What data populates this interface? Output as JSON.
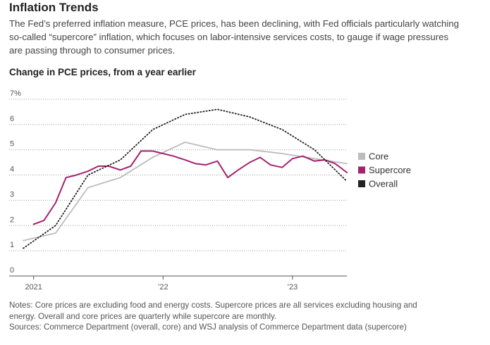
{
  "header": {
    "title": "Inflation Trends",
    "subtitle": "The Fed’s preferred inflation measure, PCE prices, has been declining, with Fed officials particularly watching so-called “supercore” inflation, which focuses on labor-intensive services costs, to gauge if wage pressures are passing through to consumer prices."
  },
  "chart_data": {
    "type": "line",
    "title": "Change in PCE prices, from a year earlier",
    "xlabel": "",
    "ylabel": "",
    "ylim": [
      0,
      7
    ],
    "xlim": [
      2020.92,
      2023.42
    ],
    "y_ticks": [
      0,
      1,
      2,
      3,
      4,
      5,
      6,
      7
    ],
    "y_tick_labels": [
      "0",
      "1",
      "2",
      "3",
      "4",
      "5",
      "6",
      "7%"
    ],
    "x_ticks": [
      2021.0,
      2022.0,
      2023.0
    ],
    "x_tick_labels": [
      "2021",
      "’22",
      "’23"
    ],
    "legend_position": "right",
    "series": [
      {
        "name": "Core",
        "color": "#bcbcbc",
        "style": "solid",
        "x": [
          2020.92,
          2021.17,
          2021.42,
          2021.67,
          2021.92,
          2022.17,
          2022.42,
          2022.67,
          2022.92,
          2023.17,
          2023.42
        ],
        "values": [
          1.4,
          1.7,
          3.5,
          3.9,
          4.7,
          5.3,
          5.0,
          5.0,
          4.85,
          4.65,
          4.45
        ]
      },
      {
        "name": "Supercore",
        "color": "#a3236f",
        "style": "solid",
        "x": [
          2021.0,
          2021.08,
          2021.17,
          2021.25,
          2021.33,
          2021.42,
          2021.5,
          2021.58,
          2021.67,
          2021.75,
          2021.83,
          2021.92,
          2022.0,
          2022.08,
          2022.17,
          2022.25,
          2022.33,
          2022.42,
          2022.5,
          2022.58,
          2022.67,
          2022.75,
          2022.83,
          2022.92,
          2023.0,
          2023.08,
          2023.17,
          2023.25,
          2023.33,
          2023.42
        ],
        "values": [
          2.05,
          2.2,
          2.9,
          3.9,
          4.0,
          4.15,
          4.35,
          4.35,
          4.2,
          4.35,
          4.95,
          4.95,
          4.85,
          4.75,
          4.6,
          4.45,
          4.4,
          4.55,
          3.9,
          4.2,
          4.5,
          4.7,
          4.4,
          4.3,
          4.65,
          4.75,
          4.55,
          4.6,
          4.45,
          4.1
        ]
      },
      {
        "name": "Overall",
        "color": "#222222",
        "style": "dotted",
        "x": [
          2020.92,
          2021.17,
          2021.42,
          2021.67,
          2021.92,
          2022.17,
          2022.42,
          2022.67,
          2022.92,
          2023.17,
          2023.42
        ],
        "values": [
          1.1,
          2.0,
          4.0,
          4.6,
          5.8,
          6.4,
          6.6,
          6.3,
          5.8,
          5.0,
          3.75
        ]
      }
    ]
  },
  "footer": {
    "notes_line1": "Notes: Core prices are excluding food and energy costs. Supercore prices are all services excluding housing and",
    "notes_line2": "energy. Overall and core prices are quarterly while supercore are monthly.",
    "sources": "Sources: Commerce Department (overall, core) and WSJ analysis of Commerce Department data (supercore)"
  }
}
